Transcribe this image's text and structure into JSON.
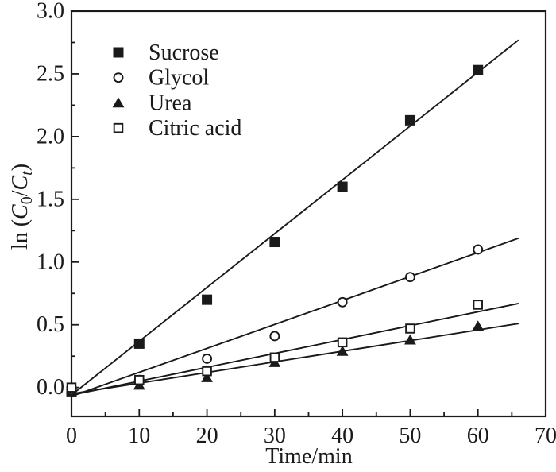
{
  "figure": {
    "background": "#ffffff",
    "ink_color": "#1a1a1a"
  },
  "chart_data": {
    "type": "scatter",
    "title": "",
    "xlabel": "Time/min",
    "ylabel": "ln (C0/Ct)",
    "ylabel_parts": [
      {
        "text": "ln (",
        "style": "normal"
      },
      {
        "text": "C",
        "style": "italic"
      },
      {
        "text": "0",
        "style": "subscript"
      },
      {
        "text": "/",
        "style": "normal"
      },
      {
        "text": "C",
        "style": "italic"
      },
      {
        "text": "t",
        "style": "subscript-italic"
      },
      {
        "text": ")",
        "style": "normal"
      }
    ],
    "xlim": [
      0,
      70
    ],
    "ylim": [
      -0.23,
      3.0
    ],
    "x_major_ticks": [
      0,
      10,
      20,
      30,
      40,
      50,
      60,
      70
    ],
    "x_tick_labels": [
      "0",
      "10",
      "20",
      "30",
      "40",
      "50",
      "60",
      "70"
    ],
    "x_minor_ticks": [
      5,
      15,
      25,
      35,
      45,
      55,
      65
    ],
    "y_major_ticks": [
      0.0,
      0.5,
      1.0,
      1.5,
      2.0,
      2.5,
      3.0
    ],
    "y_tick_labels": [
      "0.0",
      "0.5",
      "1.0",
      "1.5",
      "2.0",
      "2.5",
      "3.0"
    ],
    "y_minor_ticks": [
      0.25,
      0.75,
      1.25,
      1.75,
      2.25,
      2.75
    ],
    "grid": false,
    "legend_position": "top-left-inside",
    "x": [
      0,
      10,
      20,
      30,
      40,
      50,
      60
    ],
    "series": [
      {
        "name": "Sucrose",
        "marker": "filled-square",
        "values": [
          -0.03,
          0.35,
          0.7,
          1.16,
          1.6,
          2.13,
          2.53
        ],
        "fit_line": {
          "x": [
            0,
            66
          ],
          "y": [
            -0.06,
            2.77
          ]
        }
      },
      {
        "name": "Glycol",
        "marker": "open-circle",
        "values": [
          -0.02,
          0.06,
          0.23,
          0.41,
          0.68,
          0.88,
          1.1
        ],
        "fit_line": {
          "x": [
            0,
            66
          ],
          "y": [
            -0.07,
            1.19
          ]
        }
      },
      {
        "name": "Urea",
        "marker": "filled-triangle",
        "values": [
          -0.01,
          0.02,
          0.08,
          0.2,
          0.29,
          0.38,
          0.49
        ],
        "fit_line": {
          "x": [
            0,
            66
          ],
          "y": [
            -0.05,
            0.51
          ]
        }
      },
      {
        "name": "Citric acid",
        "marker": "open-square",
        "values": [
          0.0,
          0.06,
          0.13,
          0.24,
          0.36,
          0.47,
          0.66
        ],
        "fit_line": {
          "x": [
            0,
            66
          ],
          "y": [
            -0.06,
            0.67
          ]
        }
      }
    ]
  }
}
